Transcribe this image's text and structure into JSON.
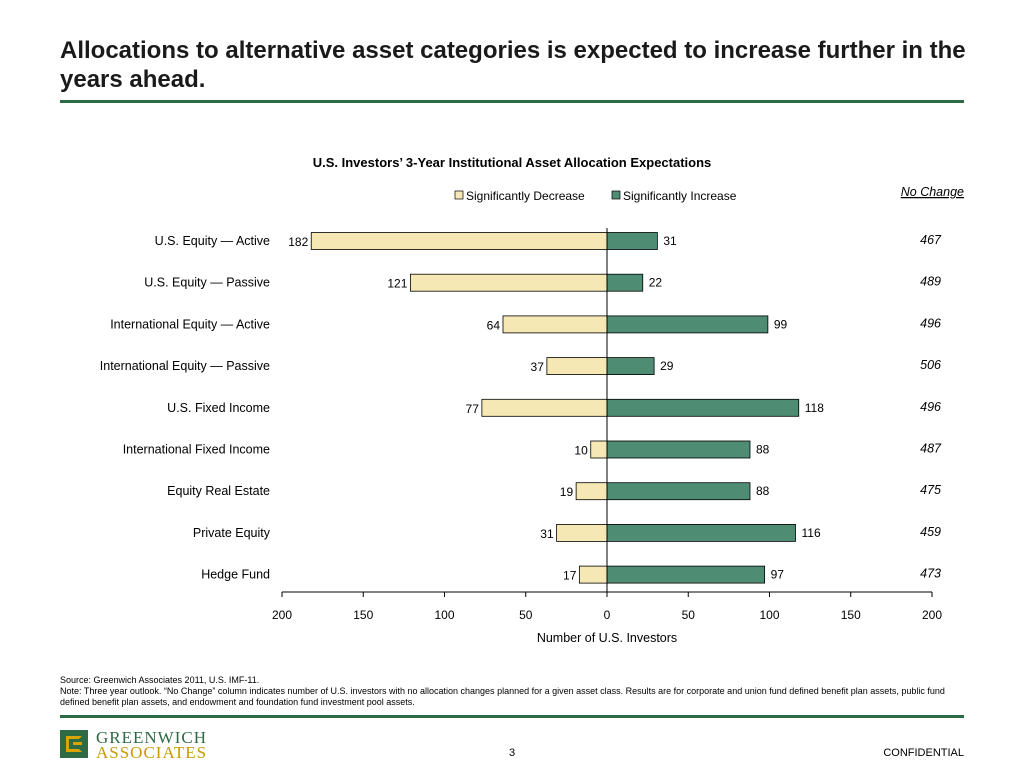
{
  "slide": {
    "title": "Allocations to alternative asset categories is expected to increase further in the years ahead.",
    "source_line": "Source: Greenwich Associates 2011, U.S. IMF-11.",
    "note_line": "Note: Three year outlook. “No Change” column indicates number of U.S. investors with no allocation changes planned for a given asset class. Results are for corporate and union fund defined benefit plan assets, public fund defined benefit plan assets, and endowment and foundation fund investment pool assets.",
    "logo_line1": "GREENWICH",
    "logo_line2": "ASSOCIATES",
    "page_number": "3",
    "confidential": "CONFIDENTIAL"
  },
  "colors": {
    "decrease": "#f5e8b5",
    "increase": "#4e8c74",
    "rule": "#2e6b44"
  },
  "chart_data": {
    "type": "bar",
    "orientation": "horizontal-diverging",
    "title": "U.S. Investors’ 3-Year Institutional Asset Allocation Expectations",
    "xlabel": "Number of U.S. Investors",
    "xlim": [
      -200,
      200
    ],
    "xticks": [
      -200,
      -150,
      -100,
      -50,
      0,
      50,
      100,
      150,
      200
    ],
    "xtick_labels": [
      "200",
      "150",
      "100",
      "50",
      "0",
      "50",
      "100",
      "150",
      "200"
    ],
    "legend_position": "top",
    "categories": [
      "U.S. Equity — Active",
      "U.S. Equity — Passive",
      "International Equity — Active",
      "International Equity — Passive",
      "U.S. Fixed Income",
      "International Fixed Income",
      "Equity Real Estate",
      "Private Equity",
      "Hedge Fund"
    ],
    "series": [
      {
        "name": "Significantly Decrease",
        "values": [
          182,
          121,
          64,
          37,
          77,
          10,
          19,
          31,
          17
        ]
      },
      {
        "name": "Significantly Increase",
        "values": [
          31,
          22,
          99,
          29,
          118,
          88,
          88,
          116,
          97
        ]
      }
    ],
    "no_change": {
      "header": "No Change",
      "values": [
        467,
        489,
        496,
        506,
        496,
        487,
        475,
        459,
        473
      ]
    }
  }
}
